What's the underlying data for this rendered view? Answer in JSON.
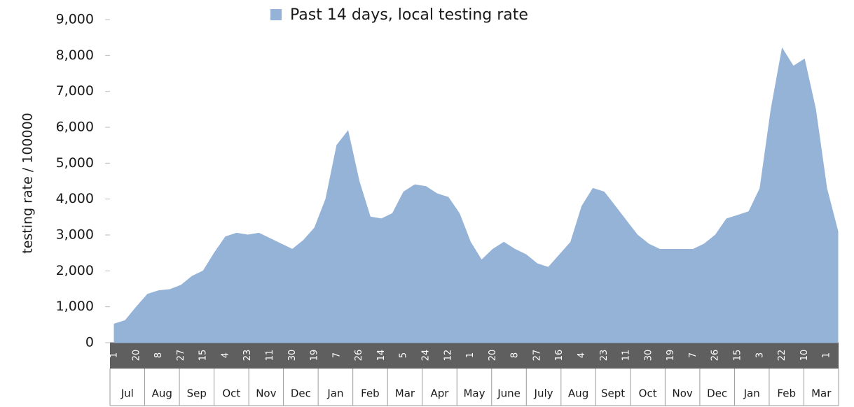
{
  "chart_data": {
    "type": "area",
    "y_label": "testing rate / 100000",
    "categories": [
      "1",
      null,
      "20",
      null,
      "8",
      null,
      "27",
      null,
      "15",
      null,
      "4",
      null,
      "23",
      null,
      "11",
      null,
      "30",
      null,
      "19",
      null,
      "7",
      null,
      "26",
      null,
      "14",
      null,
      "5",
      null,
      "24",
      null,
      "12",
      null,
      "1",
      null,
      "20",
      null,
      "8",
      null,
      "27",
      null,
      "16",
      null,
      "4",
      null,
      "23",
      null,
      "11",
      null,
      "30",
      null,
      "19",
      null,
      "7",
      null,
      "26",
      null,
      "15",
      null,
      "3",
      null,
      "22",
      null,
      "10",
      null,
      "1",
      null
    ],
    "months": [
      "Jul",
      "Aug",
      "Sep",
      "Oct",
      "Nov",
      "Dec",
      "Jan",
      "Feb",
      "Mar",
      "Apr",
      "May",
      "June",
      "July",
      "Aug",
      "Sept",
      "Oct",
      "Nov",
      "Dec",
      "Jan",
      "Feb",
      "Mar"
    ],
    "series": [
      {
        "name": "Past 14 days, local testing rate",
        "color": "#95b3d7",
        "values": [
          520,
          620,
          1000,
          1350,
          1450,
          1480,
          1600,
          1850,
          2000,
          2500,
          2950,
          3050,
          3000,
          3050,
          2900,
          2750,
          2600,
          2850,
          3200,
          4000,
          5500,
          5900,
          4500,
          3500,
          3450,
          3600,
          4200,
          4400,
          4350,
          4150,
          4050,
          3600,
          2800,
          2300,
          2600,
          2800,
          2600,
          2450,
          2200,
          2100,
          2450,
          2800,
          3800,
          4300,
          4200,
          3800,
          3400,
          3000,
          2750,
          2600,
          2600,
          2600,
          2600,
          2750,
          3000,
          3450,
          3550,
          3650,
          4300,
          6500,
          8200,
          7700,
          7900,
          6500,
          4300,
          3100
        ]
      }
    ],
    "ylim": [
      0,
      9000
    ],
    "yticks": [
      0,
      {
        "value": 1000,
        "label": "1,000"
      },
      {
        "value": 2000,
        "label": "2,000"
      },
      {
        "value": 3000,
        "label": "3,000"
      },
      {
        "value": 4000,
        "label": "4,000"
      },
      {
        "value": 5000,
        "label": "5,000"
      },
      {
        "value": 6000,
        "label": "6,000"
      },
      {
        "value": 7000,
        "label": "7,000"
      },
      {
        "value": 8000,
        "label": "8,000"
      },
      {
        "value": 9000,
        "label": "9,000"
      }
    ],
    "legend": "top",
    "grid": false
  }
}
